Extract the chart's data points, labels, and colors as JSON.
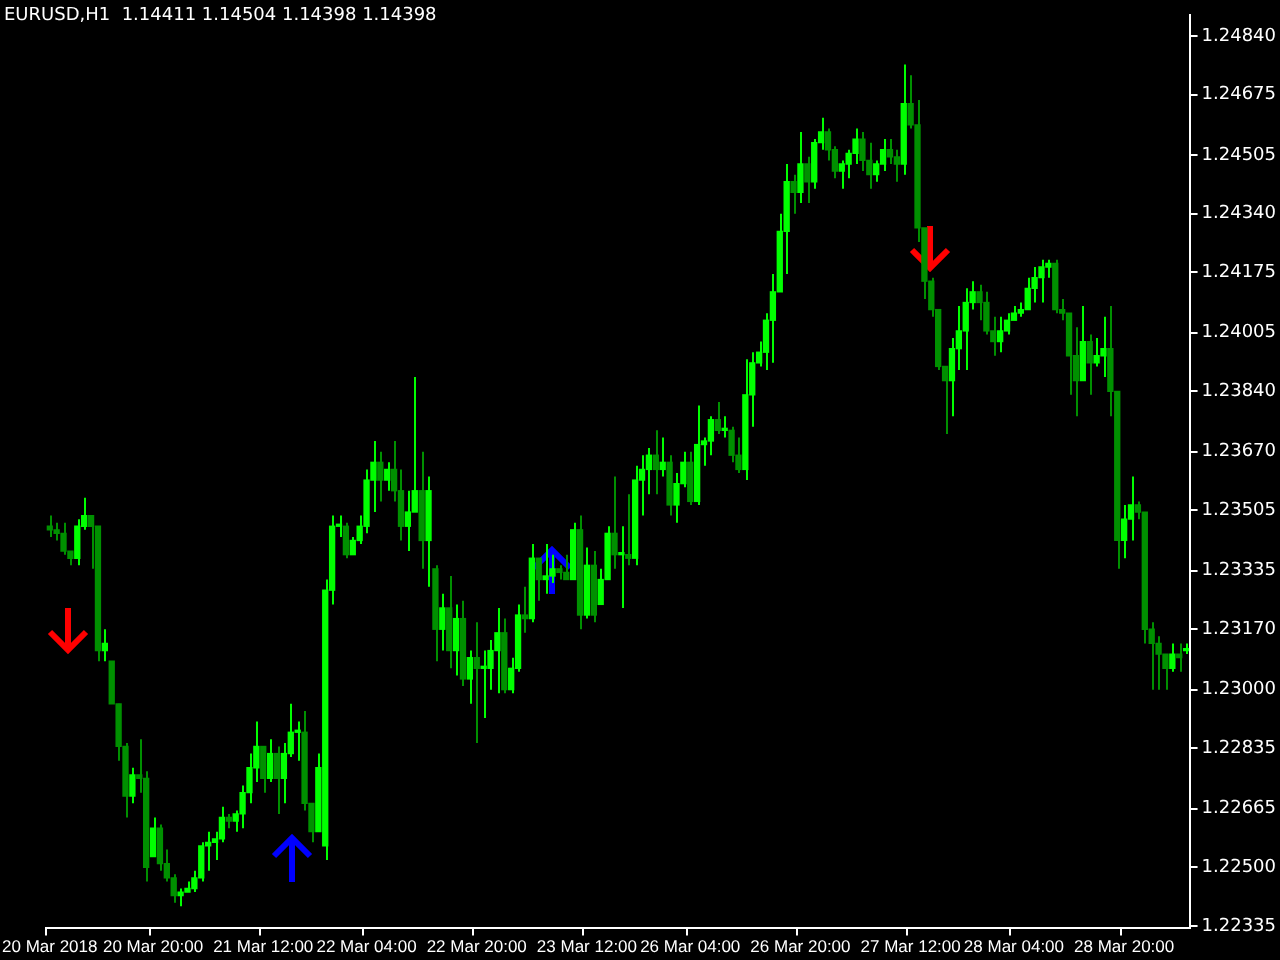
{
  "chart_data": {
    "type": "candlestick",
    "title": "EURUSD,H1  1.14411 1.14504 1.14398 1.14398",
    "categories": [
      "20 Mar 2018",
      null,
      null,
      null,
      null,
      null,
      null,
      null,
      null,
      null,
      null,
      null,
      null,
      null,
      null,
      "20 Mar 20:00",
      null,
      null,
      null,
      null,
      null,
      null,
      null,
      null,
      null,
      null,
      null,
      null,
      null,
      null,
      null,
      "21 Mar 12:00",
      null,
      null,
      null,
      null,
      null,
      null,
      null,
      null,
      null,
      null,
      null,
      null,
      null,
      null,
      "22 Mar 04:00",
      null,
      null,
      null,
      null,
      null,
      null,
      null,
      null,
      null,
      null,
      null,
      null,
      null,
      null,
      null,
      "22 Mar 20:00",
      null,
      null,
      null,
      null,
      null,
      null,
      null,
      null,
      null,
      null,
      null,
      null,
      null,
      null,
      null,
      "23 Mar 12:00",
      null,
      null,
      null,
      null,
      null,
      null,
      null,
      null,
      null,
      null,
      null,
      null,
      null,
      null,
      "26 Mar 04:00",
      null,
      null,
      null,
      null,
      null,
      null,
      null,
      null,
      null,
      null,
      null,
      null,
      null,
      null,
      null,
      "26 Mar 20:00",
      null,
      null,
      null,
      null,
      null,
      null,
      null,
      null,
      null,
      null,
      null,
      null,
      null,
      null,
      null,
      "27 Mar 12:00",
      null,
      null,
      null,
      null,
      null,
      null,
      null,
      null,
      null,
      null,
      null,
      null,
      null,
      null,
      "28 Mar 04:00",
      null,
      null,
      null,
      null,
      null,
      null,
      null,
      null,
      null,
      null,
      null,
      null,
      null,
      null,
      null,
      "28 Mar 20:00",
      null,
      null,
      null,
      null,
      null,
      null,
      null,
      null,
      null
    ],
    "ohlc": [
      [
        1.2346,
        1.2349,
        1.2343,
        1.2345
      ],
      [
        1.2345,
        1.2347,
        1.2342,
        1.2344
      ],
      [
        1.2344,
        1.2347,
        1.2338,
        1.2339
      ],
      [
        1.2339,
        1.2339,
        1.2335,
        1.2337
      ],
      [
        1.2337,
        1.2348,
        1.2335,
        1.2346
      ],
      [
        1.2346,
        1.2354,
        1.2345,
        1.2349
      ],
      [
        1.2349,
        1.2349,
        1.2334,
        1.2346
      ],
      [
        1.2346,
        1.2346,
        1.2308,
        1.2311
      ],
      [
        1.2311,
        1.2317,
        1.2308,
        1.2313
      ],
      [
        1.2308,
        1.2308,
        1.2296,
        1.2296
      ],
      [
        1.2296,
        1.2296,
        1.228,
        1.2284
      ],
      [
        1.2284,
        1.2285,
        1.2264,
        1.227
      ],
      [
        1.227,
        1.2278,
        1.2268,
        1.2276
      ],
      [
        1.2276,
        1.2286,
        1.2271,
        1.2275
      ],
      [
        1.2275,
        1.2277,
        1.2246,
        1.225
      ],
      [
        1.2253,
        1.2264,
        1.2253,
        1.2261
      ],
      [
        1.2261,
        1.2262,
        1.2249,
        1.2251
      ],
      [
        1.2251,
        1.2255,
        1.2246,
        1.2247
      ],
      [
        1.2247,
        1.2248,
        1.224,
        1.2242
      ],
      [
        1.2242,
        1.2244,
        1.2239,
        1.2243
      ],
      [
        1.2243,
        1.2246,
        1.2243,
        1.2244
      ],
      [
        1.2244,
        1.2249,
        1.2243,
        1.2247
      ],
      [
        1.2247,
        1.2257,
        1.2246,
        1.2256
      ],
      [
        1.2256,
        1.226,
        1.2249,
        1.2257
      ],
      [
        1.2257,
        1.226,
        1.2252,
        1.2258
      ],
      [
        1.2258,
        1.2267,
        1.2257,
        1.2264
      ],
      [
        1.2264,
        1.2265,
        1.2261,
        1.2263
      ],
      [
        1.2263,
        1.2266,
        1.226,
        1.2265
      ],
      [
        1.2265,
        1.2273,
        1.2261,
        1.2271
      ],
      [
        1.2271,
        1.2282,
        1.2268,
        1.2278
      ],
      [
        1.2278,
        1.2291,
        1.2274,
        1.2284
      ],
      [
        1.2284,
        1.2284,
        1.2271,
        1.2275
      ],
      [
        1.2275,
        1.2286,
        1.2274,
        1.2282
      ],
      [
        1.2282,
        1.2284,
        1.2265,
        1.2275
      ],
      [
        1.2275,
        1.2285,
        1.2268,
        1.2282
      ],
      [
        1.2282,
        1.2296,
        1.2281,
        1.2288
      ],
      [
        1.2288,
        1.2291,
        1.228,
        1.2288
      ],
      [
        1.2288,
        1.2294,
        1.2266,
        1.2268
      ],
      [
        1.2268,
        1.2268,
        1.2257,
        1.226
      ],
      [
        1.226,
        1.2282,
        1.226,
        1.2278
      ],
      [
        1.2256,
        1.2331,
        1.2252,
        1.2328
      ],
      [
        1.2328,
        1.2349,
        1.2324,
        1.2346
      ],
      [
        1.2346,
        1.2349,
        1.2343,
        1.2346
      ],
      [
        1.2346,
        1.2347,
        1.2337,
        1.2338
      ],
      [
        1.2338,
        1.2343,
        1.2338,
        1.2342
      ],
      [
        1.2342,
        1.2349,
        1.2341,
        1.2346
      ],
      [
        1.2346,
        1.2362,
        1.2344,
        1.2359
      ],
      [
        1.2359,
        1.237,
        1.235,
        1.2364
      ],
      [
        1.2364,
        1.2367,
        1.2353,
        1.2359
      ],
      [
        1.2359,
        1.2364,
        1.2356,
        1.2362
      ],
      [
        1.2362,
        1.237,
        1.2353,
        1.2356
      ],
      [
        1.2356,
        1.2362,
        1.2342,
        1.2346
      ],
      [
        1.2346,
        1.2356,
        1.2339,
        1.235
      ],
      [
        1.235,
        1.2388,
        1.235,
        1.2356
      ],
      [
        1.2356,
        1.2367,
        1.2334,
        1.2342
      ],
      [
        1.2342,
        1.236,
        1.2329,
        1.2356
      ],
      [
        1.2334,
        1.2335,
        1.2308,
        1.2317
      ],
      [
        1.2317,
        1.2327,
        1.2311,
        1.2323
      ],
      [
        1.2323,
        1.2332,
        1.2306,
        1.2311
      ],
      [
        1.2311,
        1.2324,
        1.2304,
        1.232
      ],
      [
        1.232,
        1.2325,
        1.2301,
        1.2303
      ],
      [
        1.2303,
        1.2311,
        1.2296,
        1.2309
      ],
      [
        1.2309,
        1.2319,
        1.2285,
        1.2306
      ],
      [
        1.2306,
        1.2311,
        1.2292,
        1.2306
      ],
      [
        1.2306,
        1.2314,
        1.23,
        1.2311
      ],
      [
        1.2311,
        1.2323,
        1.2299,
        1.2316
      ],
      [
        1.2316,
        1.232,
        1.2299,
        1.23
      ],
      [
        1.23,
        1.2309,
        1.2299,
        1.2306
      ],
      [
        1.2306,
        1.2324,
        1.2305,
        1.2321
      ],
      [
        1.2321,
        1.2329,
        1.2316,
        1.232
      ],
      [
        1.232,
        1.2341,
        1.2319,
        1.2337
      ],
      [
        1.2337,
        1.2337,
        1.2325,
        1.2331
      ],
      [
        1.2331,
        1.2341,
        1.2327,
        1.2332
      ],
      [
        1.2332,
        1.2338,
        1.233,
        1.2334
      ],
      [
        1.2334,
        1.2335,
        1.2331,
        1.2333
      ],
      [
        1.2333,
        1.2338,
        1.2331,
        1.2331
      ],
      [
        1.2331,
        1.2347,
        1.2331,
        1.2345
      ],
      [
        1.2345,
        1.2349,
        1.2317,
        1.2321
      ],
      [
        1.2321,
        1.234,
        1.232,
        1.2335
      ],
      [
        1.2335,
        1.2339,
        1.2319,
        1.2321
      ],
      [
        1.2324,
        1.2334,
        1.2324,
        1.2331
      ],
      [
        1.2331,
        1.2346,
        1.2331,
        1.2344
      ],
      [
        1.2344,
        1.236,
        1.2334,
        1.2338
      ],
      [
        1.2338,
        1.2346,
        1.2323,
        1.2338
      ],
      [
        1.2338,
        1.2355,
        1.2335,
        1.2337
      ],
      [
        1.2337,
        1.2363,
        1.2335,
        1.2359
      ],
      [
        1.2359,
        1.2366,
        1.2349,
        1.2362
      ],
      [
        1.2362,
        1.2368,
        1.2355,
        1.2366
      ],
      [
        1.2366,
        1.2373,
        1.2355,
        1.2362
      ],
      [
        1.2362,
        1.2371,
        1.236,
        1.2364
      ],
      [
        1.2364,
        1.2366,
        1.2349,
        1.2352
      ],
      [
        1.2352,
        1.2361,
        1.2347,
        1.2358
      ],
      [
        1.2358,
        1.2367,
        1.2357,
        1.2364
      ],
      [
        1.2364,
        1.2367,
        1.2352,
        1.2353
      ],
      [
        1.2353,
        1.238,
        1.2352,
        1.2369
      ],
      [
        1.2369,
        1.2371,
        1.2363,
        1.237
      ],
      [
        1.237,
        1.2377,
        1.2366,
        1.2376
      ],
      [
        1.2376,
        1.2381,
        1.2372,
        1.2373
      ],
      [
        1.2373,
        1.2377,
        1.2371,
        1.2373
      ],
      [
        1.2373,
        1.2374,
        1.2364,
        1.2366
      ],
      [
        1.2366,
        1.2371,
        1.2361,
        1.2362
      ],
      [
        1.2362,
        1.2393,
        1.2359,
        1.2383
      ],
      [
        1.2383,
        1.2395,
        1.2374,
        1.2392
      ],
      [
        1.2392,
        1.2398,
        1.2391,
        1.2395
      ],
      [
        1.2395,
        1.2406,
        1.239,
        1.2404
      ],
      [
        1.2404,
        1.2417,
        1.2392,
        1.2412
      ],
      [
        1.2412,
        1.2434,
        1.2412,
        1.2429
      ],
      [
        1.2429,
        1.2448,
        1.2417,
        1.2443
      ],
      [
        1.2443,
        1.2445,
        1.2434,
        1.244
      ],
      [
        1.244,
        1.2457,
        1.2437,
        1.2448
      ],
      [
        1.2448,
        1.245,
        1.2437,
        1.2443
      ],
      [
        1.2443,
        1.2455,
        1.2441,
        1.2454
      ],
      [
        1.2454,
        1.2461,
        1.2452,
        1.2457
      ],
      [
        1.2457,
        1.2458,
        1.2449,
        1.2452
      ],
      [
        1.2452,
        1.2453,
        1.2444,
        1.2446
      ],
      [
        1.2446,
        1.2449,
        1.2441,
        1.2448
      ],
      [
        1.2448,
        1.2452,
        1.2444,
        1.2451
      ],
      [
        1.2451,
        1.2458,
        1.2448,
        1.2455
      ],
      [
        1.2455,
        1.2457,
        1.2446,
        1.2449
      ],
      [
        1.2449,
        1.2454,
        1.2441,
        1.2445
      ],
      [
        1.2445,
        1.2449,
        1.2443,
        1.2448
      ],
      [
        1.2448,
        1.2455,
        1.2446,
        1.2452
      ],
      [
        1.2452,
        1.2455,
        1.2448,
        1.245
      ],
      [
        1.245,
        1.2452,
        1.2443,
        1.2448
      ],
      [
        1.2448,
        1.2476,
        1.2445,
        1.2465
      ],
      [
        1.2465,
        1.2473,
        1.2458,
        1.2459
      ],
      [
        1.2459,
        1.2466,
        1.2426,
        1.243
      ],
      [
        1.243,
        1.243,
        1.241,
        1.2415
      ],
      [
        1.2415,
        1.2416,
        1.2405,
        1.2407
      ],
      [
        1.2407,
        1.2407,
        1.239,
        1.2391
      ],
      [
        1.2391,
        1.2391,
        1.2372,
        1.2387
      ],
      [
        1.2387,
        1.2399,
        1.2377,
        1.2396
      ],
      [
        1.2396,
        1.2408,
        1.239,
        1.2401
      ],
      [
        1.2401,
        1.2413,
        1.239,
        1.2409
      ],
      [
        1.2409,
        1.2415,
        1.2407,
        1.2412
      ],
      [
        1.2412,
        1.2414,
        1.2404,
        1.2409
      ],
      [
        1.2409,
        1.2412,
        1.24,
        1.2401
      ],
      [
        1.2401,
        1.2405,
        1.2394,
        1.2398
      ],
      [
        1.2398,
        1.2405,
        1.2395,
        1.2401
      ],
      [
        1.2401,
        1.2406,
        1.24,
        1.2404
      ],
      [
        1.2404,
        1.2408,
        1.2404,
        1.2406
      ],
      [
        1.2406,
        1.2409,
        1.2405,
        1.2407
      ],
      [
        1.2407,
        1.2416,
        1.2407,
        1.2413
      ],
      [
        1.2413,
        1.2419,
        1.2409,
        1.2416
      ],
      [
        1.2416,
        1.2421,
        1.2409,
        1.2419
      ],
      [
        1.2419,
        1.2421,
        1.2416,
        1.242
      ],
      [
        1.242,
        1.2421,
        1.2406,
        1.2407
      ],
      [
        1.2407,
        1.241,
        1.2404,
        1.2406
      ],
      [
        1.2406,
        1.2406,
        1.2383,
        1.2394
      ],
      [
        1.2394,
        1.2402,
        1.2377,
        1.2387
      ],
      [
        1.2387,
        1.2408,
        1.2387,
        1.2398
      ],
      [
        1.2398,
        1.24,
        1.2383,
        1.2392
      ],
      [
        1.2392,
        1.2399,
        1.2391,
        1.2394
      ],
      [
        1.2394,
        1.2405,
        1.2388,
        1.2396
      ],
      [
        1.2396,
        1.2408,
        1.2377,
        1.2384
      ],
      [
        1.2384,
        1.2384,
        1.2334,
        1.2342
      ],
      [
        1.2342,
        1.2352,
        1.2337,
        1.2348
      ],
      [
        1.2348,
        1.236,
        1.2342,
        1.2352
      ],
      [
        1.2352,
        1.2353,
        1.2348,
        1.235
      ],
      [
        1.235,
        1.235,
        1.2313,
        1.2317
      ],
      [
        1.2317,
        1.2319,
        1.23,
        1.2313
      ],
      [
        1.2313,
        1.2315,
        1.23,
        1.231
      ],
      [
        1.231,
        1.231,
        1.23,
        1.2306
      ],
      [
        1.2306,
        1.2313,
        1.2305,
        1.231
      ],
      [
        1.231,
        1.2313,
        1.2305,
        1.2309
      ],
      [
        1.2311,
        1.2313,
        1.231,
        1.2311
      ]
    ],
    "colors": [
      "#009000",
      "#009000",
      "#009000",
      "#009000",
      "#00ff00",
      "#00ff00",
      "#009000",
      "#009000",
      "#00ff00",
      "#009000",
      "#009000",
      "#009000",
      "#00ff00",
      "#009000",
      "#009000",
      "#00ff00",
      "#009000",
      "#009000",
      "#009000",
      "#00ff00",
      "#00ff00",
      "#00ff00",
      "#00ff00",
      "#00ff00",
      "#00ff00",
      "#00ff00",
      "#009000",
      "#00ff00",
      "#00ff00",
      "#00ff00",
      "#00ff00",
      "#009000",
      "#00ff00",
      "#009000",
      "#00ff00",
      "#00ff00",
      "#00ff00",
      "#009000",
      "#009000",
      "#00ff00",
      "#00ff00",
      "#00ff00",
      "#00ff00",
      "#009000",
      "#00ff00",
      "#00ff00",
      "#00ff00",
      "#00ff00",
      "#009000",
      "#00ff00",
      "#009000",
      "#009000",
      "#00ff00",
      "#00ff00",
      "#009000",
      "#00ff00",
      "#009000",
      "#00ff00",
      "#009000",
      "#00ff00",
      "#009000",
      "#00ff00",
      "#009000",
      "#00ff00",
      "#00ff00",
      "#00ff00",
      "#009000",
      "#00ff00",
      "#00ff00",
      "#009000",
      "#00ff00",
      "#009000",
      "#00ff00",
      "#00ff00",
      "#009000",
      "#009000",
      "#00ff00",
      "#009000",
      "#00ff00",
      "#009000",
      "#00ff00",
      "#00ff00",
      "#009000",
      "#00ff00",
      "#009000",
      "#00ff00",
      "#00ff00",
      "#00ff00",
      "#009000",
      "#00ff00",
      "#009000",
      "#00ff00",
      "#00ff00",
      "#009000",
      "#00ff00",
      "#00ff00",
      "#00ff00",
      "#009000",
      "#00ff00",
      "#009000",
      "#009000",
      "#00ff00",
      "#00ff00",
      "#00ff00",
      "#00ff00",
      "#00ff00",
      "#00ff00",
      "#00ff00",
      "#009000",
      "#00ff00",
      "#009000",
      "#00ff00",
      "#00ff00",
      "#009000",
      "#009000",
      "#00ff00",
      "#00ff00",
      "#00ff00",
      "#009000",
      "#009000",
      "#00ff00",
      "#00ff00",
      "#009000",
      "#009000",
      "#00ff00",
      "#009000",
      "#009000",
      "#009000",
      "#009000",
      "#009000",
      "#009000",
      "#00ff00",
      "#00ff00",
      "#00ff00",
      "#00ff00",
      "#009000",
      "#009000",
      "#009000",
      "#00ff00",
      "#00ff00",
      "#00ff00",
      "#00ff00",
      "#00ff00",
      "#00ff00",
      "#00ff00",
      "#00ff00",
      "#009000",
      "#009000",
      "#009000",
      "#009000",
      "#00ff00",
      "#009000",
      "#00ff00",
      "#00ff00",
      "#009000",
      "#009000",
      "#00ff00",
      "#00ff00",
      "#009000",
      "#009000",
      "#009000",
      "#009000",
      "#009000",
      "#00ff00",
      "#009000",
      "#00ff00"
    ],
    "ylim": [
      1.2233,
      1.249
    ],
    "yticks": [
      {
        "value": 1.2484,
        "label": "1.24840"
      },
      {
        "value": 1.24675,
        "label": "1.24675"
      },
      {
        "value": 1.24505,
        "label": "1.24505"
      },
      {
        "value": 1.2434,
        "label": "1.24340"
      },
      {
        "value": 1.24175,
        "label": "1.24175"
      },
      {
        "value": 1.24005,
        "label": "1.24005"
      },
      {
        "value": 1.2384,
        "label": "1.23840"
      },
      {
        "value": 1.2367,
        "label": "1.23670"
      },
      {
        "value": 1.23505,
        "label": "1.23505"
      },
      {
        "value": 1.23335,
        "label": "1.23335"
      },
      {
        "value": 1.2317,
        "label": "1.23170"
      },
      {
        "value": 1.23,
        "label": "1.23000"
      },
      {
        "value": 1.22835,
        "label": "1.22835"
      },
      {
        "value": 1.22665,
        "label": "1.22665"
      },
      {
        "value": 1.225,
        "label": "1.22500"
      },
      {
        "value": 1.22335,
        "label": "1.22335"
      }
    ]
  }
}
